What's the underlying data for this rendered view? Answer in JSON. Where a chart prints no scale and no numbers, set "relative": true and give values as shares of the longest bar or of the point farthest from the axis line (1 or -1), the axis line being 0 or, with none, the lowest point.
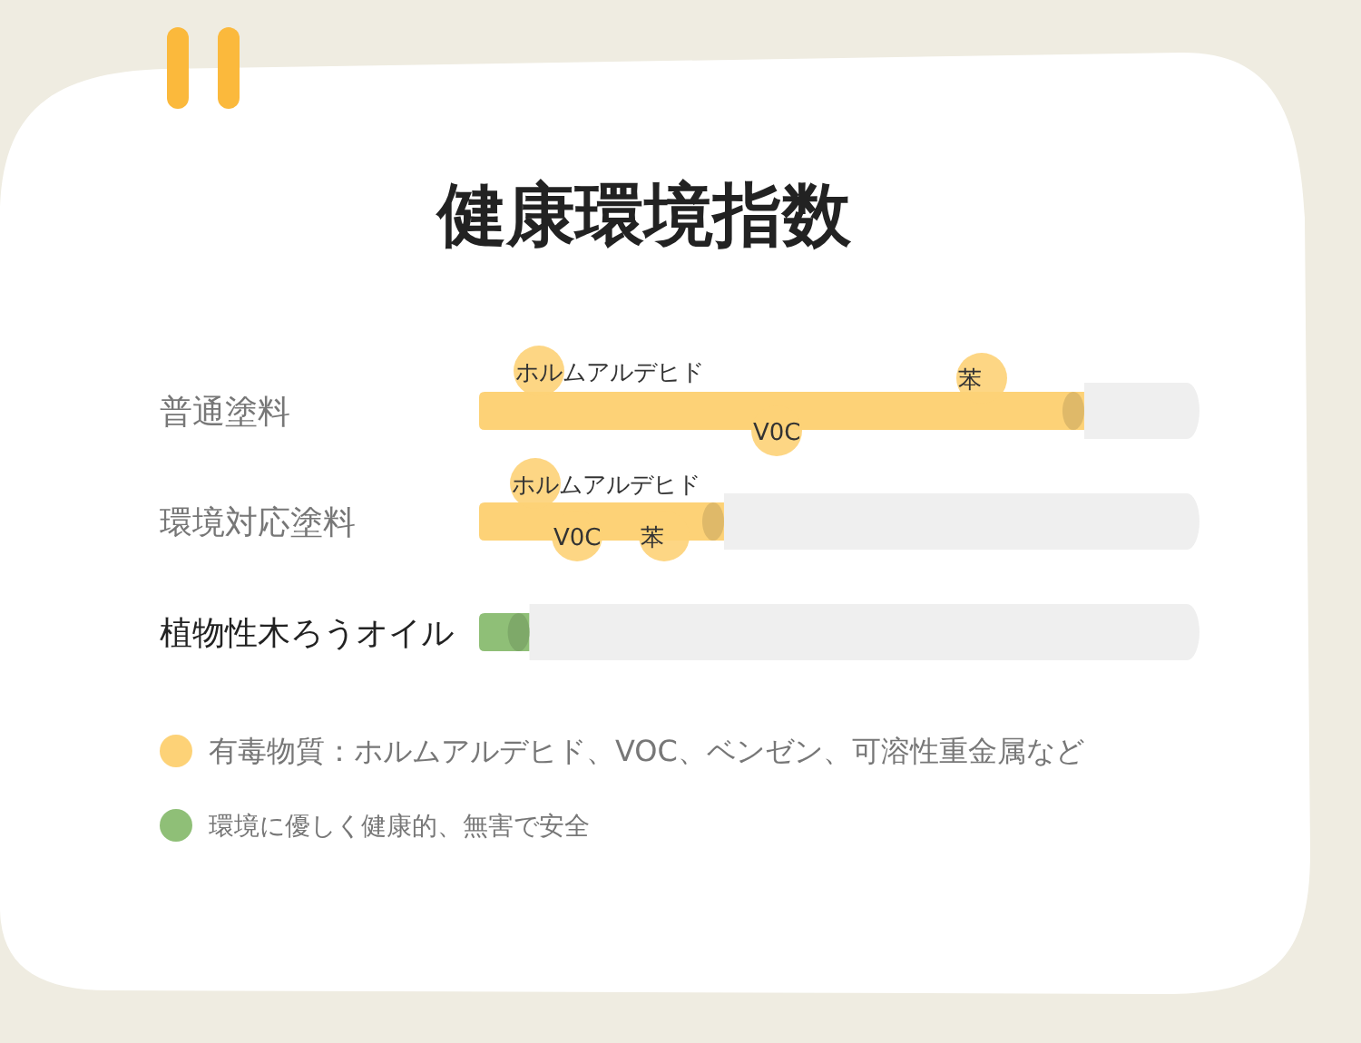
{
  "chart_data": {
    "type": "bar",
    "orientation": "horizontal",
    "relative": true,
    "stacked": true,
    "title": "健康環境指数",
    "categories": [
      "普通塗料",
      "環境対応塗料",
      "植物性木ろうオイル"
    ],
    "series": [
      {
        "name": "有毒物質：ホルムアルデヒド、VOC、ベンゼン、可溶性重金属など",
        "color": "#fdd277",
        "values": [
          0.84,
          0.34,
          null
        ]
      },
      {
        "name": "環境に優しく健康的、無害で安全",
        "color": "#8fbf77",
        "values": [
          null,
          null,
          0.07
        ]
      },
      {
        "color": "#efefef",
        "values": [
          0.16,
          0.66,
          0.93
        ]
      }
    ],
    "tick_labels": "y",
    "legend": "bottom left",
    "annotations": [
      "ホルムアルデヒド",
      "V0C",
      "苯",
      "ホルムアルデヒド",
      "V0C",
      "苯"
    ]
  }
}
